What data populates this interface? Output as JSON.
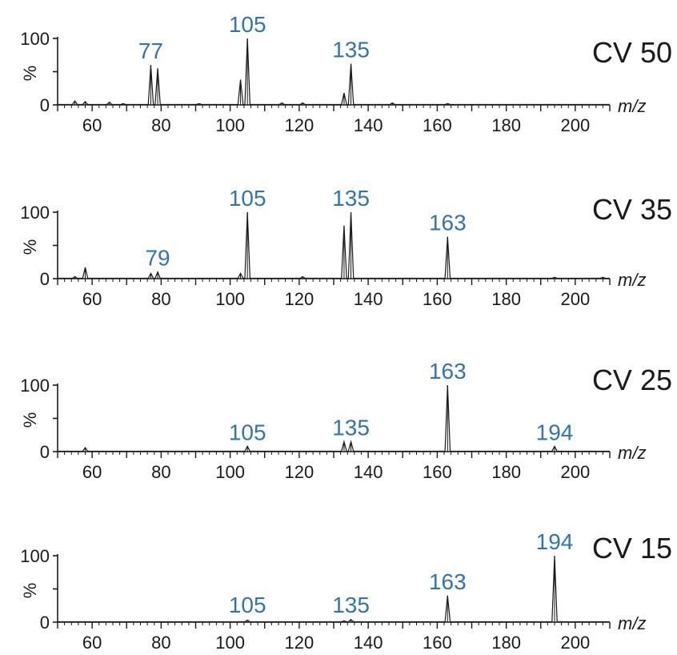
{
  "chart_data": [
    {
      "type": "line",
      "title": "CV 50",
      "xlabel": "m/z",
      "ylabel": "%",
      "xlim": [
        50,
        210
      ],
      "ylim": [
        0,
        100
      ],
      "xticks": [
        "60",
        "80",
        "100",
        "120",
        "140",
        "160",
        "180",
        "200"
      ],
      "yticks": [
        "0",
        "100"
      ],
      "peaks": [
        {
          "mz": 55,
          "intensity": 6
        },
        {
          "mz": 58,
          "intensity": 5
        },
        {
          "mz": 65,
          "intensity": 4
        },
        {
          "mz": 69,
          "intensity": 2
        },
        {
          "mz": 77,
          "intensity": 60
        },
        {
          "mz": 79,
          "intensity": 55
        },
        {
          "mz": 91,
          "intensity": 2
        },
        {
          "mz": 103,
          "intensity": 38
        },
        {
          "mz": 105,
          "intensity": 100
        },
        {
          "mz": 115,
          "intensity": 3
        },
        {
          "mz": 121,
          "intensity": 3
        },
        {
          "mz": 133,
          "intensity": 18
        },
        {
          "mz": 135,
          "intensity": 62
        },
        {
          "mz": 147,
          "intensity": 3
        },
        {
          "mz": 163,
          "intensity": 2
        }
      ],
      "peak_labels": [
        "77",
        "105",
        "135"
      ]
    },
    {
      "type": "line",
      "title": "CV 35",
      "xlabel": "m/z",
      "ylabel": "%",
      "xlim": [
        50,
        210
      ],
      "ylim": [
        0,
        100
      ],
      "xticks": [
        "60",
        "80",
        "100",
        "120",
        "140",
        "160",
        "180",
        "200"
      ],
      "yticks": [
        "0",
        "100"
      ],
      "peaks": [
        {
          "mz": 55,
          "intensity": 3
        },
        {
          "mz": 58,
          "intensity": 17
        },
        {
          "mz": 77,
          "intensity": 8
        },
        {
          "mz": 79,
          "intensity": 10
        },
        {
          "mz": 103,
          "intensity": 8
        },
        {
          "mz": 105,
          "intensity": 100
        },
        {
          "mz": 121,
          "intensity": 3
        },
        {
          "mz": 133,
          "intensity": 80
        },
        {
          "mz": 135,
          "intensity": 100
        },
        {
          "mz": 163,
          "intensity": 63
        },
        {
          "mz": 194,
          "intensity": 2
        },
        {
          "mz": 208,
          "intensity": 2
        }
      ],
      "peak_labels": [
        "79",
        "105",
        "135",
        "163"
      ]
    },
    {
      "type": "line",
      "title": "CV 25",
      "xlabel": "m/z",
      "ylabel": "%",
      "xlim": [
        50,
        210
      ],
      "ylim": [
        0,
        100
      ],
      "xticks": [
        "60",
        "80",
        "100",
        "120",
        "140",
        "160",
        "180",
        "200"
      ],
      "yticks": [
        "0",
        "100"
      ],
      "peaks": [
        {
          "mz": 58,
          "intensity": 6
        },
        {
          "mz": 105,
          "intensity": 8
        },
        {
          "mz": 133,
          "intensity": 15
        },
        {
          "mz": 135,
          "intensity": 15
        },
        {
          "mz": 163,
          "intensity": 100
        },
        {
          "mz": 194,
          "intensity": 8
        }
      ],
      "peak_labels": [
        "105",
        "135",
        "163",
        "194"
      ]
    },
    {
      "type": "line",
      "title": "CV 15",
      "xlabel": "m/z",
      "ylabel": "%",
      "xlim": [
        50,
        210
      ],
      "ylim": [
        0,
        100
      ],
      "xticks": [
        "60",
        "80",
        "100",
        "120",
        "140",
        "160",
        "180",
        "200"
      ],
      "yticks": [
        "0",
        "100"
      ],
      "peaks": [
        {
          "mz": 105,
          "intensity": 3
        },
        {
          "mz": 133,
          "intensity": 2
        },
        {
          "mz": 135,
          "intensity": 4
        },
        {
          "mz": 163,
          "intensity": 40
        },
        {
          "mz": 194,
          "intensity": 100
        }
      ],
      "peak_labels": [
        "105",
        "135",
        "163",
        "194"
      ]
    }
  ],
  "colors": {
    "peak_label": "#2f75b5",
    "trace": "#1a1a1a",
    "axis": "#1a1a1a"
  }
}
